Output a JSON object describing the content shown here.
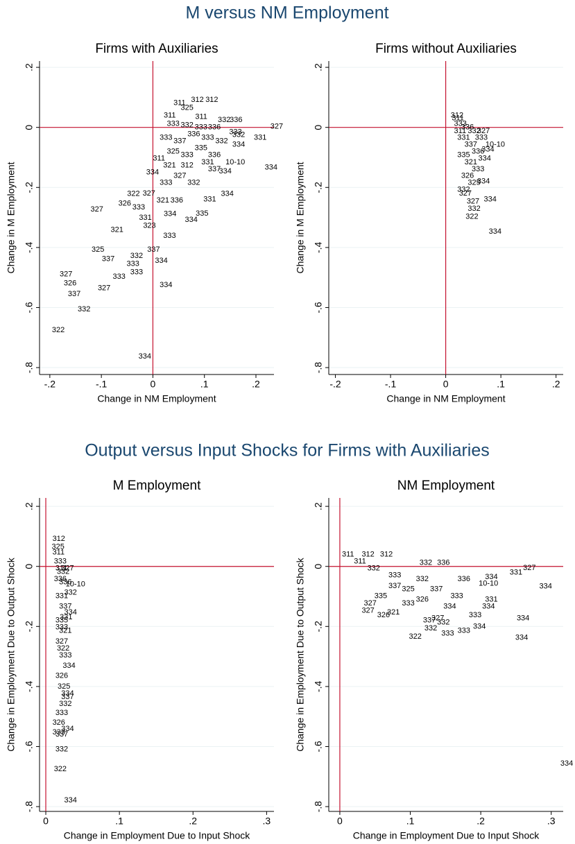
{
  "figure_titles": [
    "M versus NM Employment",
    "Output versus Input Shocks for Firms with Auxiliaries"
  ],
  "chart_data": [
    {
      "type": "scatter",
      "title": "Firms with Auxiliaries",
      "xlabel": "Change in NM Employment",
      "ylabel": "Change in M Employment",
      "xlim": [
        -0.22,
        0.235
      ],
      "ylim": [
        -0.823,
        0.221
      ],
      "xticks": [
        {
          "value": -0.2,
          "label": "-.2"
        },
        {
          "value": -0.1,
          "label": "-.1"
        },
        0,
        {
          "value": 0.1,
          "label": ".1"
        },
        {
          "value": 0.2,
          "label": ".2"
        }
      ],
      "yticks": [
        {
          "value": -0.8,
          "label": "-.8"
        },
        {
          "value": -0.6,
          "label": "-.6"
        },
        {
          "value": -0.4,
          "label": "-.4"
        },
        {
          "value": -0.2,
          "label": "-.2"
        },
        0,
        {
          "value": 0.2,
          "label": ".2"
        }
      ],
      "xline": 0,
      "yline": 0,
      "grid": true,
      "color": "#1a476f",
      "line_color": "#c4122f",
      "series": [
        {
          "x": [
            0.074,
            0.102,
            0.04,
            0.054,
            0.021,
            0.082,
            0.126,
            0.149,
            0.228,
            0.196,
            0.217,
            0.141,
            0.132,
            0.083,
            0.062,
            0.02,
            -0.011,
            0.004,
            -0.051,
            -0.044,
            -0.099,
            -0.119,
            -0.181,
            -0.173,
            -0.165,
            -0.107,
            -0.078,
            -0.044,
            -0.146,
            -0.196,
            0.013,
            -0.028,
            -0.082,
            -0.121,
            -0.05,
            0.098,
            0.021,
            -0.019,
            0.027,
            0.054,
            0.081,
            0.107,
            0.148,
            0.154,
            0.154,
            0.013,
            0.04,
            0,
            0.02,
            0.054,
            0.081,
            0.107,
            0.128,
            0.04,
            0.067,
            0.013,
            -0.02,
            0.007,
            0.034,
            -0.067,
            -0.04,
            -0.027,
            0.054,
            0.027,
            -0.013,
            0.094,
            0.121,
            0.067,
            0.094,
            0.107
          ],
          "values": [
            0.092,
            0.092,
            0.081,
            0.065,
            0.039,
            0.035,
            0.025,
            0.025,
            0.002,
            -0.035,
            -0.134,
            -0.116,
            -0.222,
            -0.287,
            -0.308,
            -0.361,
            -0.407,
            -0.444,
            -0.455,
            -0.428,
            -0.439,
            -0.407,
            -0.49,
            -0.52,
            -0.555,
            -0.536,
            -0.497,
            -0.483,
            -0.606,
            -0.675,
            -0.525,
            -0.763,
            -0.342,
            -0.273,
            -0.222,
            -0.24,
            -0.289,
            -0.328,
            0.012,
            0.007,
            0,
            0,
            -0.016,
            -0.025,
            -0.058,
            -0.035,
            -0.046,
            -0.104,
            -0.127,
            -0.092,
            -0.069,
            -0.092,
            -0.146,
            -0.162,
            -0.185,
            -0.185,
            -0.22,
            -0.243,
            -0.243,
            -0.254,
            -0.266,
            -0.301,
            -0.127,
            -0.081,
            -0.15,
            -0.035,
            -0.046,
            -0.023,
            -0.116,
            -0.139
          ],
          "labels": [
            "312",
            "312",
            "311",
            "325",
            "311",
            "311",
            "332",
            "336",
            "327",
            "331",
            "334",
            "10-10",
            "334",
            "335",
            "334",
            "333",
            "337",
            "334",
            "333",
            "332",
            "337",
            "325",
            "327",
            "326",
            "337",
            "327",
            "333",
            "333",
            "332",
            "322",
            "334",
            "334",
            "321",
            "327",
            "322",
            "331",
            "334",
            "323",
            "333",
            "332",
            "333",
            "336",
            "333",
            "332",
            "334",
            "333",
            "337",
            "311",
            "321",
            "333",
            "335",
            "336",
            "334",
            "327",
            "332",
            "333",
            "327",
            "321",
            "336",
            "326",
            "333",
            "331",
            "312",
            "325",
            "334",
            "333",
            "332",
            "336",
            "331",
            "337"
          ]
        }
      ]
    },
    {
      "type": "scatter",
      "title": "Firms without Auxiliaries",
      "xlabel": "Change in NM Employment",
      "ylabel": "Change in M Employment",
      "xlim": [
        -0.212,
        0.213
      ],
      "ylim": [
        -0.823,
        0.221
      ],
      "xticks": [
        {
          "value": -0.2,
          "label": "-.2"
        },
        {
          "value": -0.1,
          "label": "-.1"
        },
        0,
        {
          "value": 0.1,
          "label": ".1"
        },
        {
          "value": 0.2,
          "label": ".2"
        }
      ],
      "yticks": [
        {
          "value": -0.8,
          "label": "-.8"
        },
        {
          "value": -0.6,
          "label": "-.6"
        },
        {
          "value": -0.4,
          "label": "-.4"
        },
        {
          "value": -0.2,
          "label": "-.2"
        },
        0,
        {
          "value": 0.2,
          "label": ".2"
        }
      ],
      "xline": 0,
      "yline": 0,
      "grid": true,
      "color": "#1a476f",
      "line_color": "#c4122f",
      "series": [
        {
          "x": [
            0.009,
            0.011,
            0.057,
            0.072,
            0.065,
            0.057,
            0.069,
            0.038,
            0.04,
            0.036,
            0.078,
            0.015,
            0.028,
            0.04,
            0.021,
            0.034,
            0.021,
            0.034,
            0.047,
            0.028,
            0.04,
            0.021,
            0.024,
            0.053,
            0.059,
            0.047,
            0.015
          ],
          "values": [
            0.039,
            0.03,
            -0.012,
            -0.058,
            -0.074,
            -0.18,
            -0.24,
            -0.247,
            -0.271,
            -0.298,
            -0.347,
            0.012,
            0,
            -0.012,
            -0.035,
            -0.058,
            -0.092,
            -0.116,
            -0.139,
            -0.162,
            -0.185,
            -0.208,
            -0.22,
            -0.035,
            -0.104,
            -0.081,
            -0.012
          ],
          "labels": [
            "312",
            "311",
            "327",
            "10-10",
            "334",
            "334",
            "334",
            "327",
            "332",
            "322",
            "334",
            "333",
            "336",
            "332",
            "331",
            "337",
            "335",
            "321",
            "333",
            "326",
            "325",
            "332",
            "327",
            "333",
            "334",
            "336",
            "311"
          ]
        }
      ]
    },
    {
      "type": "scatter",
      "title": "M Employment",
      "xlabel": "Change in Employment Due to Input Shock",
      "ylabel": "Change in Employment Due to Output Shock",
      "xlim": [
        -0.0085,
        0.31
      ],
      "ylim": [
        -0.816,
        0.228
      ],
      "xticks": [
        0,
        {
          "value": 0.1,
          "label": ".1"
        },
        {
          "value": 0.2,
          "label": ".2"
        },
        {
          "value": 0.3,
          "label": ".3"
        }
      ],
      "yticks": [
        {
          "value": -0.8,
          "label": "-.8"
        },
        {
          "value": -0.6,
          "label": "-.6"
        },
        {
          "value": -0.4,
          "label": "-.4"
        },
        {
          "value": -0.2,
          "label": "-.2"
        },
        0,
        {
          "value": 0.2,
          "label": ".2"
        }
      ],
      "xline": 0,
      "yline": 0,
      "grid": true,
      "color": "#1a476f",
      "line_color": "#c4122f",
      "series": [
        {
          "x": [
            0.009,
            0.008,
            0.009,
            0.027,
            0.025,
            0.009,
            0.021,
            0.013,
            0.009,
            0.013,
            0.013,
            0.011,
            0.025,
            0.018,
            0.021,
            0.011,
            0.015,
            0.018,
            0.013,
            0.018,
            0.013,
            0.018,
            0.013,
            0.018,
            0.023,
            0.013,
            0.016,
            0.021,
            0.013,
            0.025,
            0.011,
            0.013,
            0.021,
            0.015,
            0.019
          ],
          "values": [
            0.092,
            0.065,
            0.046,
            -0.06,
            -0.153,
            -0.553,
            -0.541,
            -0.56,
            -0.52,
            -0.488,
            -0.61,
            -0.675,
            -0.779,
            -0.458,
            -0.423,
            0.016,
            -0.018,
            -0.053,
            -0.099,
            -0.134,
            -0.18,
            -0.215,
            -0.25,
            -0.296,
            -0.331,
            -0.365,
            -0.4,
            -0.435,
            -0.203,
            -0.088,
            -0.042,
            -0.007,
            -0.007,
            -0.273,
            -0.169
          ],
          "labels": [
            "312",
            "325",
            "311",
            "10-10",
            "334",
            "333",
            "334",
            "337",
            "326",
            "333",
            "332",
            "322",
            "334",
            "332",
            "334",
            "333",
            "332",
            "336",
            "331",
            "337",
            "335",
            "321",
            "327",
            "333",
            "334",
            "326",
            "325",
            "337",
            "333",
            "332",
            "336",
            "311",
            "327",
            "322",
            "331"
          ]
        }
      ]
    },
    {
      "type": "scatter",
      "title": "NM Employment",
      "xlabel": "Change in Employment Due to Input Shock",
      "ylabel": "Change in Employment Due to Output Shock",
      "xlim": [
        -0.0157,
        0.317
      ],
      "ylim": [
        -0.816,
        0.228
      ],
      "xticks": [
        0,
        {
          "value": 0.1,
          "label": ".1"
        },
        {
          "value": 0.2,
          "label": ".2"
        },
        {
          "value": 0.3,
          "label": ".3"
        }
      ],
      "yticks": [
        {
          "value": -0.8,
          "label": "-.8"
        },
        {
          "value": -0.6,
          "label": "-.6"
        },
        {
          "value": -0.4,
          "label": "-.4"
        },
        {
          "value": -0.2,
          "label": "-.2"
        },
        0,
        {
          "value": 0.2,
          "label": ".2"
        }
      ],
      "xline": 0,
      "yline": 0,
      "grid": true,
      "color": "#1a476f",
      "line_color": "#c4122f",
      "series": [
        {
          "x": [
            0.003,
            0.031,
            0.057,
            0.241,
            0.26,
            0.283,
            0.313,
            0.251,
            0.249,
            0.202,
            0.031,
            0.053,
            0.098,
            0.12,
            0.118,
            0.144,
            0.167,
            0.189,
            0.183,
            0.138,
            0.13,
            0.138,
            0.113,
            0.206,
            0.197,
            0.069,
            0.108,
            0.067,
            0.034,
            0.049,
            0.206,
            0.157,
            0.128,
            0.088,
            0.167,
            0.02,
            0.039,
            0.088,
            0.147,
            0.108,
            0.069
          ],
          "values": [
            0.039,
            0.039,
            0.039,
            -0.021,
            -0.005,
            -0.067,
            -0.657,
            -0.173,
            -0.238,
            -0.134,
            -0.148,
            -0.162,
            -0.234,
            -0.206,
            -0.18,
            -0.224,
            -0.215,
            -0.201,
            -0.162,
            -0.187,
            -0.173,
            0.012,
            0.012,
            -0.035,
            -0.058,
            -0.03,
            -0.042,
            -0.153,
            -0.123,
            -0.099,
            -0.111,
            -0.099,
            -0.076,
            -0.076,
            -0.042,
            0.016,
            -0.007,
            -0.123,
            -0.134,
            -0.111,
            -0.065
          ],
          "labels": [
            "311",
            "312",
            "312",
            "331",
            "327",
            "334",
            "334",
            "334",
            "334",
            "334",
            "327",
            "326",
            "322",
            "332",
            "337",
            "333",
            "333",
            "334",
            "333",
            "332",
            "327",
            "336",
            "332",
            "334",
            "10-10",
            "333",
            "332",
            "321",
            "327",
            "335",
            "331",
            "333",
            "337",
            "325",
            "336",
            "311",
            "332",
            "333",
            "334",
            "326",
            "337"
          ]
        }
      ]
    }
  ]
}
